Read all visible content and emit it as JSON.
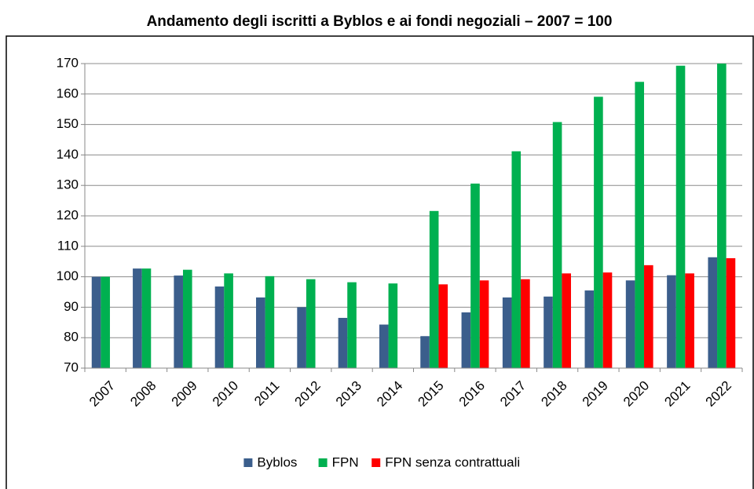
{
  "chart_data": {
    "type": "bar",
    "title": "Andamento degli iscritti a Byblos e ai fondi negoziali – 2007 = 100",
    "categories": [
      "2007",
      "2008",
      "2009",
      "2010",
      "2011",
      "2012",
      "2013",
      "2014",
      "2015",
      "2016",
      "2017",
      "2018",
      "2019",
      "2020",
      "2021",
      "2022"
    ],
    "series": [
      {
        "name": "Byblos",
        "color": "#3b5e8c",
        "values": [
          100,
          102.7,
          100.4,
          96.8,
          93.2,
          90,
          86.5,
          84.3,
          80.5,
          88.3,
          93.2,
          93.5,
          95.5,
          98.8,
          100.5,
          106.4
        ]
      },
      {
        "name": "FPN",
        "color": "#00b050",
        "values": [
          100,
          102.7,
          102.3,
          101.1,
          100.2,
          99.2,
          98.2,
          97.8,
          121.6,
          130.6,
          141.2,
          150.8,
          159.1,
          164,
          169.3,
          170
        ]
      },
      {
        "name": "FPN senza contrattuali",
        "color": "#ff0000",
        "values": [
          null,
          null,
          null,
          null,
          null,
          null,
          null,
          null,
          97.5,
          98.8,
          99.2,
          101.1,
          101.4,
          103.8,
          101.1,
          106.1
        ]
      }
    ],
    "ylim": [
      70,
      170
    ],
    "yticks": [
      70,
      80,
      90,
      100,
      110,
      120,
      130,
      140,
      150,
      160,
      170
    ],
    "grid": true,
    "legend": "bottom"
  }
}
